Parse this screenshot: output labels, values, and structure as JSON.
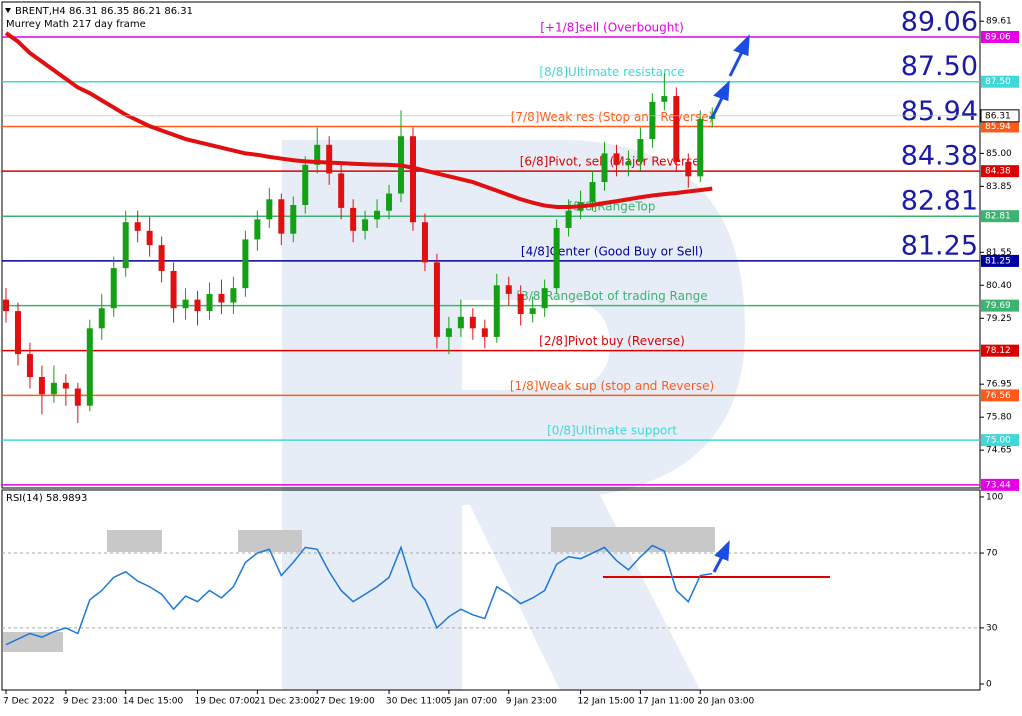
{
  "header": {
    "symbol_line": "BRENT,H4  86.31 86.35 86.21 86.31",
    "indicator": "Murrey Math 217 day frame"
  },
  "chart_data": [
    {
      "type": "candlestick",
      "categories": [
        "7 Dec 2022",
        null,
        null,
        null,
        null,
        "9 Dec 23:00",
        null,
        null,
        null,
        null,
        "14 Dec 15:00",
        null,
        null,
        null,
        null,
        null,
        "19 Dec 07:00",
        null,
        null,
        null,
        null,
        "21 Dec 23:00",
        null,
        null,
        null,
        null,
        "27 Dec 19:00",
        null,
        null,
        null,
        null,
        null,
        "30 Dec 11:00",
        null,
        null,
        null,
        null,
        "5 Jan 07:00",
        null,
        null,
        null,
        null,
        "9 Jan 23:00",
        null,
        null,
        null,
        null,
        null,
        "12 Jan 15:00",
        null,
        null,
        null,
        null,
        "17 Jan 11:00",
        null,
        null,
        null,
        null,
        "20 Jan 03:00",
        null
      ],
      "candles": [
        [
          79.9,
          80.3,
          79.1,
          79.5
        ],
        [
          79.5,
          79.8,
          77.6,
          78.0
        ],
        [
          78.0,
          78.4,
          76.8,
          77.2
        ],
        [
          77.2,
          77.6,
          75.9,
          76.6
        ],
        [
          76.6,
          77.6,
          76.3,
          77.0
        ],
        [
          77.0,
          77.3,
          76.2,
          76.8
        ],
        [
          76.8,
          77.0,
          75.6,
          76.2
        ],
        [
          76.2,
          79.2,
          76.0,
          78.9
        ],
        [
          78.9,
          80.1,
          78.5,
          79.6
        ],
        [
          79.6,
          81.4,
          79.3,
          81.0
        ],
        [
          81.0,
          83.0,
          80.7,
          82.6
        ],
        [
          82.6,
          83.0,
          81.9,
          82.3
        ],
        [
          82.3,
          82.8,
          81.4,
          81.8
        ],
        [
          81.8,
          82.1,
          80.5,
          80.9
        ],
        [
          80.9,
          81.2,
          79.1,
          79.6
        ],
        [
          79.6,
          80.3,
          79.2,
          79.9
        ],
        [
          79.9,
          80.2,
          79.0,
          79.5
        ],
        [
          79.5,
          80.5,
          79.2,
          80.1
        ],
        [
          80.1,
          80.6,
          79.4,
          79.8
        ],
        [
          79.8,
          80.7,
          79.4,
          80.3
        ],
        [
          80.3,
          82.3,
          80.0,
          82.0
        ],
        [
          82.0,
          83.0,
          81.6,
          82.7
        ],
        [
          82.7,
          83.8,
          82.4,
          83.4
        ],
        [
          83.4,
          83.6,
          81.8,
          82.2
        ],
        [
          82.2,
          83.5,
          81.9,
          83.2
        ],
        [
          83.2,
          84.9,
          82.9,
          84.6
        ],
        [
          84.6,
          85.9,
          84.3,
          85.3
        ],
        [
          85.3,
          85.6,
          83.9,
          84.3
        ],
        [
          84.3,
          84.6,
          82.7,
          83.1
        ],
        [
          83.1,
          83.4,
          81.9,
          82.3
        ],
        [
          82.3,
          83.0,
          82.0,
          82.7
        ],
        [
          82.7,
          83.4,
          82.4,
          83.0
        ],
        [
          83.0,
          83.9,
          82.7,
          83.6
        ],
        [
          83.6,
          86.5,
          83.3,
          85.6
        ],
        [
          85.6,
          85.9,
          82.3,
          82.6
        ],
        [
          82.6,
          82.9,
          80.9,
          81.2
        ],
        [
          81.2,
          81.5,
          78.2,
          78.6
        ],
        [
          78.6,
          79.3,
          78.0,
          78.9
        ],
        [
          78.9,
          79.9,
          78.6,
          79.3
        ],
        [
          79.3,
          79.6,
          78.5,
          78.9
        ],
        [
          78.9,
          79.2,
          78.2,
          78.6
        ],
        [
          78.6,
          80.8,
          78.4,
          80.4
        ],
        [
          80.4,
          80.7,
          79.7,
          80.1
        ],
        [
          80.1,
          80.4,
          79.0,
          79.4
        ],
        [
          79.4,
          80.0,
          79.1,
          79.6
        ],
        [
          79.6,
          80.6,
          79.3,
          80.3
        ],
        [
          80.3,
          82.7,
          80.1,
          82.4
        ],
        [
          82.4,
          83.4,
          82.1,
          83.0
        ],
        [
          83.0,
          83.7,
          82.7,
          83.3
        ],
        [
          83.3,
          84.4,
          83.0,
          84.0
        ],
        [
          84.0,
          85.4,
          83.7,
          85.0
        ],
        [
          85.0,
          85.3,
          84.2,
          84.6
        ],
        [
          84.6,
          85.1,
          84.2,
          84.7
        ],
        [
          84.7,
          85.9,
          84.4,
          85.5
        ],
        [
          85.5,
          87.1,
          85.2,
          86.8
        ],
        [
          86.8,
          87.8,
          86.5,
          87.0
        ],
        [
          87.0,
          87.3,
          84.4,
          84.7
        ],
        [
          84.7,
          85.0,
          83.8,
          84.2
        ],
        [
          84.2,
          86.5,
          84.0,
          86.2
        ],
        [
          86.2,
          86.6,
          85.9,
          86.31
        ]
      ],
      "up_color": "#14a014",
      "down_color": "#e01010",
      "ma": {
        "color": "#e01010",
        "values": [
          89.2,
          88.9,
          88.5,
          88.2,
          87.9,
          87.6,
          87.3,
          87.1,
          86.85,
          86.6,
          86.35,
          86.15,
          85.95,
          85.8,
          85.65,
          85.5,
          85.4,
          85.3,
          85.2,
          85.1,
          85.0,
          84.95,
          84.88,
          84.82,
          84.76,
          84.72,
          84.7,
          84.68,
          84.66,
          84.64,
          84.62,
          84.61,
          84.6,
          84.58,
          84.5,
          84.4,
          84.3,
          84.2,
          84.1,
          84.0,
          83.85,
          83.7,
          83.55,
          83.4,
          83.28,
          83.18,
          83.13,
          83.13,
          83.15,
          83.2,
          83.27,
          83.33,
          83.4,
          83.47,
          83.53,
          83.58,
          83.62,
          83.67,
          83.72,
          83.77
        ]
      },
      "ylim": [
        73.33,
        90.35
      ],
      "yticks": [
        89.61,
        {
          "value": 85.0,
          "label": "85.00"
        },
        83.85,
        81.55,
        {
          "value": 80.4,
          "label": "80.40"
        },
        79.25,
        76.95,
        {
          "value": 75.8,
          "label": "75.80"
        },
        74.65
      ],
      "current_price": {
        "value": 86.31,
        "label": "86.31"
      },
      "levels": [
        {
          "value": 89.06,
          "price_label": "89.06",
          "big_label": "89.06",
          "label": "[+1/8]sell (Overbought)",
          "color": "#e600e6"
        },
        {
          "value": 87.5,
          "price_label": "87.50",
          "big_label": "87.50",
          "label": "[8/8]Ultimate resistance",
          "color": "#40d8d8"
        },
        {
          "value": 85.94,
          "price_label": "85.94",
          "big_label": "85.94",
          "label": "[7/8]Weak res (Stop and Reverse)",
          "color": "#ff5a1a"
        },
        {
          "value": 84.38,
          "price_label": "84.38",
          "big_label": "84.38",
          "label": "[6/8]Pivot, sell (Major Reverse)",
          "color": "#dd0000"
        },
        {
          "value": 82.81,
          "price_label": "82.81",
          "big_label": "82.81",
          "label": "[5/8]RangeTop",
          "color": "#3cb371"
        },
        {
          "value": 81.25,
          "price_label": "81.25",
          "big_label": "81.25",
          "label": "[4/8]Center (Good Buy or Sell)",
          "color": "#0000a0"
        },
        {
          "value": 79.69,
          "price_label": "79.69",
          "label": "[3/8]RangeBot of trading Range",
          "color": "#3cb371"
        },
        {
          "value": 78.12,
          "price_label": "78.12",
          "label": "[2/8]Pivot buy (Reverse)",
          "color": "#dd0000"
        },
        {
          "value": 76.56,
          "price_label": "76.56",
          "label": "[1/8]Weak sup (stop and Reverse)",
          "color": "#ff5a1a"
        },
        {
          "value": 75.0,
          "price_label": "75.00",
          "label": "[0/8]Ultimate support",
          "color": "#40d8d8"
        },
        {
          "value": 73.44,
          "price_label": "73.44",
          "color": "#e600e6"
        }
      ]
    },
    {
      "type": "line",
      "title": "RSI(14) 58.9893",
      "color": "#1e78d8",
      "values": [
        21,
        24,
        27,
        25,
        28,
        30,
        27,
        45,
        50,
        57,
        60,
        55,
        52,
        48,
        40,
        47,
        44,
        50,
        46,
        52,
        65,
        70,
        72,
        58,
        65,
        73,
        72,
        60,
        50,
        44,
        48,
        52,
        57,
        73,
        52,
        45,
        30,
        36,
        40,
        37,
        35,
        52,
        48,
        43,
        46,
        50,
        64,
        68,
        67,
        70,
        73,
        66,
        61,
        68,
        74,
        71,
        50,
        44,
        58,
        58.9893
      ],
      "ylim": [
        -3.2,
        103.7
      ],
      "yticks": [
        0,
        30,
        70,
        100
      ],
      "levels": [
        30,
        70
      ]
    }
  ]
}
